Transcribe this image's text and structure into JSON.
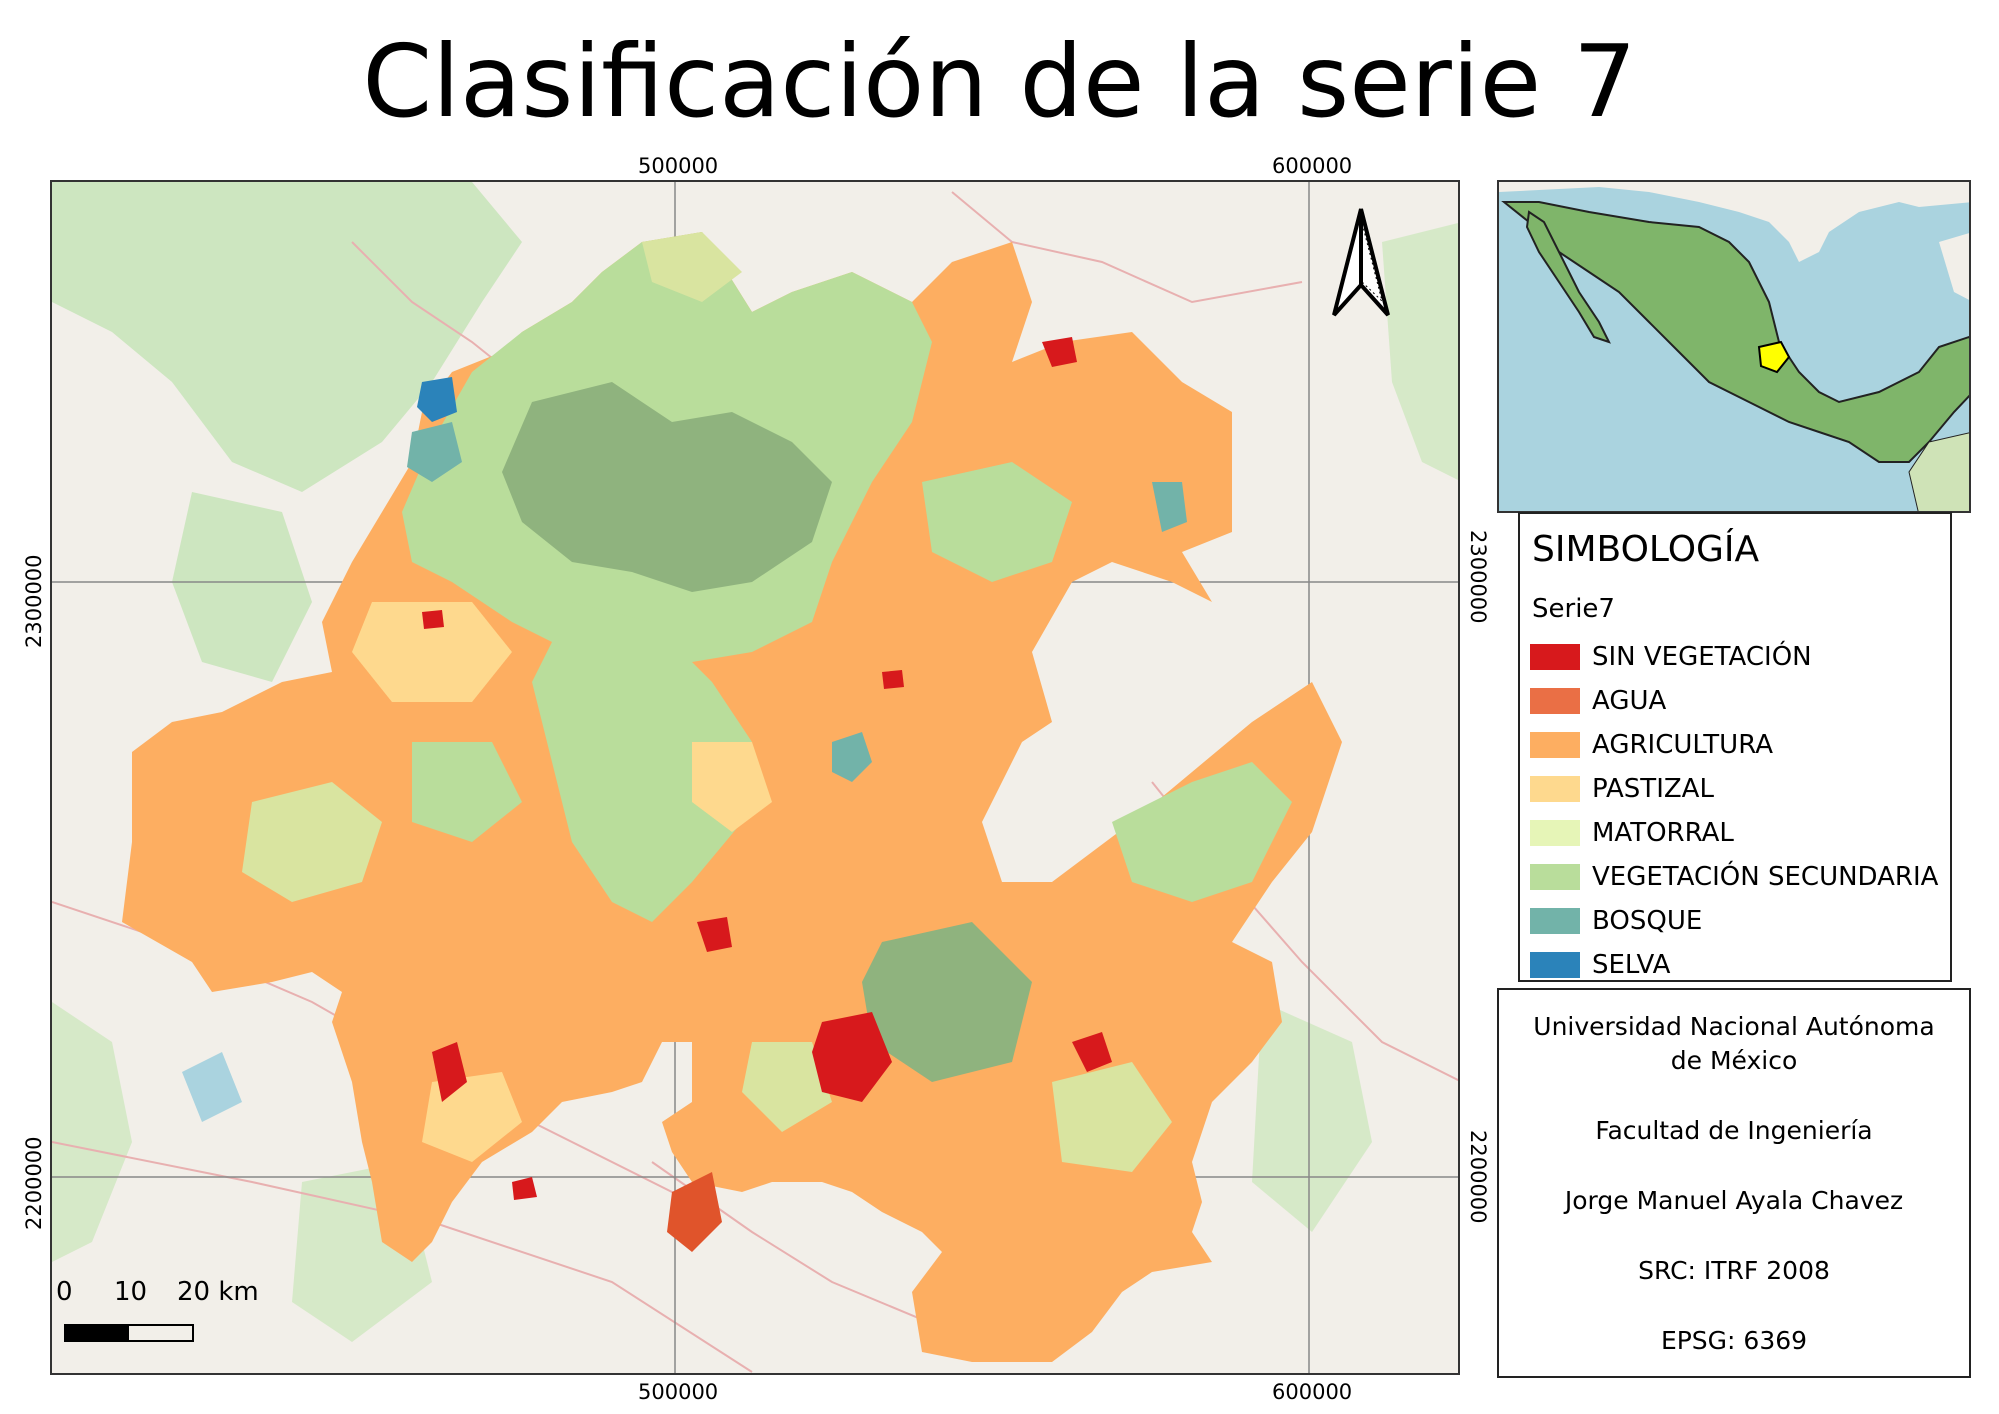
{
  "title": "Clasificación de la serie 7",
  "grid_labels": {
    "x_top": [
      "500000",
      "600000"
    ],
    "x_bottom": [
      "500000",
      "600000"
    ],
    "y_left": [
      "2300000",
      "2200000"
    ],
    "y_right": [
      "2300000",
      "2200000"
    ]
  },
  "scale_bar": {
    "labels": [
      "0",
      "10",
      "20 km"
    ]
  },
  "legend": {
    "title": "SIMBOLOGÍA",
    "layer": "Serie7",
    "items": [
      {
        "label": "SIN VEGETACIÓN",
        "color": "#d7191c"
      },
      {
        "label": "AGUA",
        "color": "#ea6f45"
      },
      {
        "label": "AGRICULTURA",
        "color": "#fdae61"
      },
      {
        "label": "PASTIZAL",
        "color": "#fed98e"
      },
      {
        "label": "MATORRAL",
        "color": "#e6f5b7"
      },
      {
        "label": "VEGETACIÓN SECUNDARIA",
        "color": "#b9dd9b"
      },
      {
        "label": "BOSQUE",
        "color": "#72b3a9"
      },
      {
        "label": "SELVA",
        "color": "#2b83ba"
      }
    ]
  },
  "info": {
    "university": "Universidad Nacional Autónoma de México",
    "faculty": "Facultad de Ingeniería",
    "author": "Jorge Manuel Ayala Chavez",
    "src": "SRC: ITRF 2008",
    "epsg": "EPSG: 6369"
  },
  "north_arrow_icon": "north-arrow-icon",
  "colors": {
    "basemap": "#f2efe9",
    "forest_basemap": "#cde6c0",
    "water": "#aad3df",
    "mexico": "#7fb56a",
    "study_area_highlight": "#ffff00"
  }
}
